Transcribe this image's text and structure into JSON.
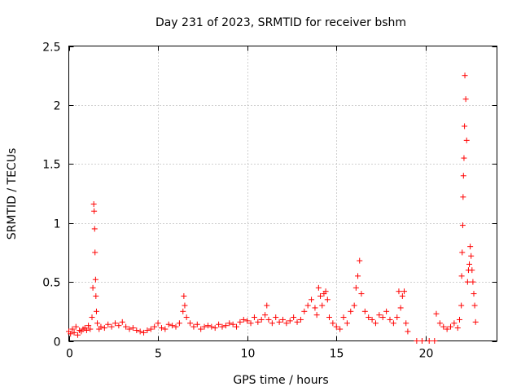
{
  "chart_data": {
    "type": "scatter",
    "title": "Day 231 of 2023, SRMTID for receiver bshm",
    "xlabel": "GPS time / hours",
    "ylabel": "SRMTID / TECUs",
    "xlim": [
      0,
      24
    ],
    "ylim": [
      0,
      2.5
    ],
    "xticks": [
      0,
      5,
      10,
      15,
      20
    ],
    "xtick_labels": [
      "0",
      "5",
      "10",
      "15",
      "20"
    ],
    "yticks": [
      0,
      0.5,
      1,
      1.5,
      2,
      2.5
    ],
    "ytick_labels": [
      "0",
      "0.5",
      "1",
      "1.5",
      "2",
      "2.5"
    ],
    "grid": true,
    "marker": "+",
    "color": "#ff0000",
    "series": [
      {
        "name": "SRMTID",
        "x": [
          0.0,
          0.1,
          0.2,
          0.3,
          0.4,
          0.5,
          0.6,
          0.7,
          0.8,
          0.9,
          1.0,
          1.1,
          1.2,
          1.3,
          1.35,
          1.4,
          1.42,
          1.45,
          1.47,
          1.5,
          1.52,
          1.55,
          1.6,
          1.7,
          1.8,
          2.0,
          2.2,
          2.4,
          2.6,
          2.8,
          3.0,
          3.2,
          3.4,
          3.6,
          3.8,
          4.0,
          4.2,
          4.4,
          4.6,
          4.8,
          5.0,
          5.2,
          5.4,
          5.6,
          5.8,
          6.0,
          6.2,
          6.4,
          6.45,
          6.5,
          6.6,
          6.8,
          7.0,
          7.2,
          7.4,
          7.6,
          7.8,
          8.0,
          8.2,
          8.4,
          8.6,
          8.8,
          9.0,
          9.2,
          9.4,
          9.6,
          9.8,
          10.0,
          10.2,
          10.4,
          10.6,
          10.8,
          11.0,
          11.1,
          11.2,
          11.4,
          11.6,
          11.8,
          12.0,
          12.2,
          12.4,
          12.6,
          12.8,
          13.0,
          13.2,
          13.4,
          13.6,
          13.8,
          13.9,
          14.0,
          14.1,
          14.2,
          14.3,
          14.4,
          14.5,
          14.6,
          14.8,
          15.0,
          15.2,
          15.4,
          15.6,
          15.8,
          16.0,
          16.1,
          16.2,
          16.3,
          16.4,
          16.6,
          16.8,
          17.0,
          17.2,
          17.4,
          17.6,
          17.8,
          18.0,
          18.2,
          18.4,
          18.5,
          18.6,
          18.7,
          18.8,
          18.9,
          19.0,
          19.5,
          19.8,
          20.2,
          20.5,
          20.6,
          20.8,
          21.0,
          21.2,
          21.4,
          21.6,
          21.8,
          21.9,
          22.0,
          22.02,
          22.05,
          22.08,
          22.1,
          22.12,
          22.15,
          22.18,
          22.2,
          22.25,
          22.3,
          22.35,
          22.4,
          22.45,
          22.5,
          22.55,
          22.6,
          22.65,
          22.7,
          22.75,
          22.8
        ],
        "y": [
          0.08,
          0.06,
          0.1,
          0.07,
          0.12,
          0.05,
          0.09,
          0.08,
          0.1,
          0.11,
          0.09,
          0.13,
          0.1,
          0.2,
          0.45,
          1.16,
          1.1,
          0.95,
          0.75,
          0.52,
          0.38,
          0.25,
          0.15,
          0.1,
          0.12,
          0.11,
          0.14,
          0.12,
          0.15,
          0.13,
          0.16,
          0.12,
          0.1,
          0.11,
          0.09,
          0.08,
          0.07,
          0.09,
          0.1,
          0.12,
          0.15,
          0.11,
          0.1,
          0.14,
          0.13,
          0.12,
          0.15,
          0.25,
          0.38,
          0.3,
          0.2,
          0.15,
          0.12,
          0.14,
          0.1,
          0.12,
          0.13,
          0.12,
          0.11,
          0.14,
          0.12,
          0.13,
          0.15,
          0.14,
          0.12,
          0.16,
          0.18,
          0.17,
          0.15,
          0.2,
          0.16,
          0.18,
          0.22,
          0.3,
          0.18,
          0.15,
          0.2,
          0.16,
          0.18,
          0.15,
          0.17,
          0.2,
          0.16,
          0.18,
          0.25,
          0.3,
          0.35,
          0.28,
          0.22,
          0.45,
          0.38,
          0.3,
          0.4,
          0.42,
          0.35,
          0.2,
          0.15,
          0.12,
          0.1,
          0.2,
          0.15,
          0.25,
          0.3,
          0.45,
          0.55,
          0.68,
          0.4,
          0.25,
          0.2,
          0.18,
          0.15,
          0.22,
          0.2,
          0.25,
          0.18,
          0.15,
          0.2,
          0.42,
          0.28,
          0.38,
          0.42,
          0.15,
          0.08,
          0.0,
          0.0,
          0.0,
          0.0,
          0.23,
          0.15,
          0.12,
          0.1,
          0.12,
          0.15,
          0.11,
          0.18,
          0.3,
          0.55,
          0.75,
          0.98,
          1.22,
          1.4,
          1.55,
          1.82,
          2.25,
          2.05,
          1.7,
          0.5,
          0.6,
          0.65,
          0.8,
          0.72,
          0.6,
          0.5,
          0.4,
          0.3,
          0.16
        ]
      }
    ]
  }
}
